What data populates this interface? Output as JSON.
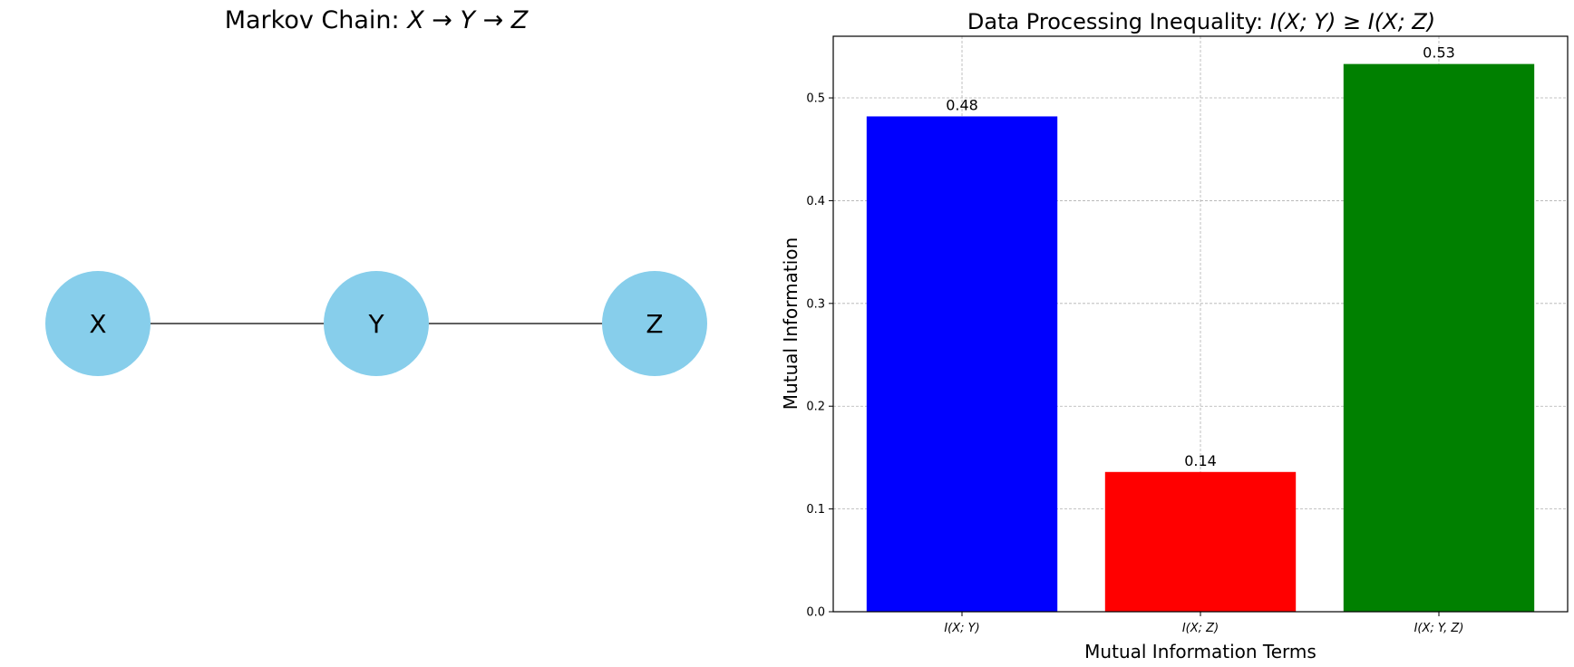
{
  "diagram": {
    "title_text": "Markov Chain: ",
    "title_math": "X → Y → Z",
    "node_color": "#87CEEB",
    "edge_color": "#000000",
    "nodes": [
      "X",
      "Y",
      "Z"
    ],
    "edges": [
      [
        "X",
        "Y"
      ],
      [
        "Y",
        "Z"
      ]
    ]
  },
  "chart_data": {
    "type": "bar",
    "title_text": "Data Processing Inequality: ",
    "title_math": "I(X; Y) ≥ I(X; Z)",
    "xlabel": "Mutual Information Terms",
    "ylabel": "Mutual Information",
    "categories": [
      "I(X; Y)",
      "I(X; Z)",
      "I(X; Y, Z)"
    ],
    "values": [
      0.482,
      0.136,
      0.533
    ],
    "value_labels": [
      "0.48",
      "0.14",
      "0.53"
    ],
    "colors": [
      "#0000FF",
      "#FF0000",
      "#008000"
    ],
    "ylim": [
      0,
      0.56
    ],
    "yticks": [
      0.0,
      0.1,
      0.2,
      0.3,
      0.4,
      0.5
    ],
    "ytick_labels": [
      "0.0",
      "0.1",
      "0.2",
      "0.3",
      "0.4",
      "0.5"
    ],
    "grid": true,
    "legend": "none"
  }
}
